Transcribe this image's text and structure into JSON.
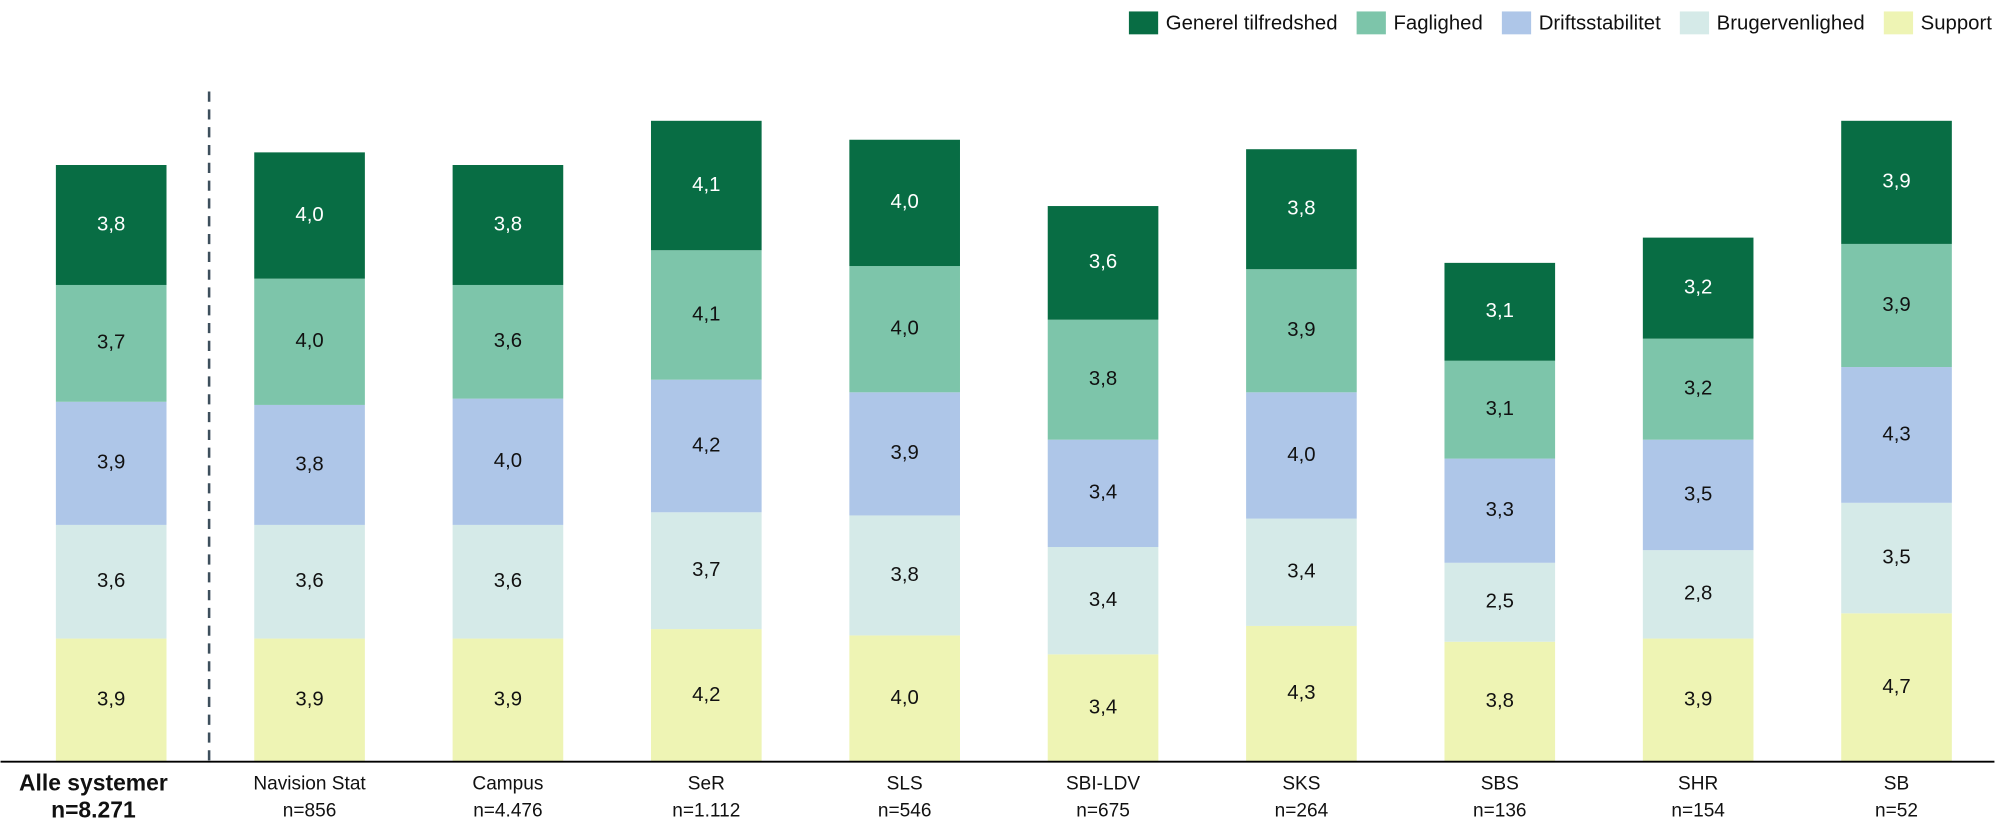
{
  "chart_data": {
    "type": "stacked_bar",
    "categories": [
      "Alle systemer",
      "Navision Stat",
      "Campus",
      "SeR",
      "SLS",
      "SBI-LDV",
      "SKS",
      "SBS",
      "SHR",
      "SB"
    ],
    "category_n": [
      "n=8.271",
      "n=856",
      "n=4.476",
      "n=1.112",
      "n=546",
      "n=675",
      "n=264",
      "n=136",
      "n=154",
      "n=52"
    ],
    "series": [
      {
        "name": "Generel tilfredshed",
        "color": "#086d44",
        "values": [
          3.8,
          4.0,
          3.8,
          4.1,
          4.0,
          3.6,
          3.8,
          3.1,
          3.2,
          3.9
        ],
        "value_labels": [
          "3,8",
          "4,0",
          "3,8",
          "4,1",
          "4,0",
          "3,6",
          "3,8",
          "3,1",
          "3,2",
          "3,9"
        ]
      },
      {
        "name": "Faglighed",
        "color": "#7dc5aa",
        "values": [
          3.7,
          4.0,
          3.6,
          4.1,
          4.0,
          3.8,
          3.9,
          3.1,
          3.2,
          3.9
        ],
        "value_labels": [
          "3,7",
          "4,0",
          "3,6",
          "4,1",
          "4,0",
          "3,8",
          "3,9",
          "3,1",
          "3,2",
          "3,9"
        ]
      },
      {
        "name": "Driftsstabilitet",
        "color": "#aec6e8",
        "values": [
          3.9,
          3.8,
          4.0,
          4.2,
          3.9,
          3.4,
          4.0,
          3.3,
          3.5,
          4.3
        ],
        "value_labels": [
          "3,9",
          "3,8",
          "4,0",
          "4,2",
          "3,9",
          "3,4",
          "4,0",
          "3,3",
          "3,5",
          "4,3"
        ]
      },
      {
        "name": "Brugervenlighed",
        "color": "#d5eae8",
        "values": [
          3.6,
          3.6,
          3.6,
          3.7,
          3.8,
          3.4,
          3.4,
          2.5,
          2.8,
          3.5
        ],
        "value_labels": [
          "3,6",
          "3,6",
          "3,6",
          "3,7",
          "3,8",
          "3,4",
          "3,4",
          "2,5",
          "2,8",
          "3,5"
        ]
      },
      {
        "name": "Support",
        "color": "#eef4b4",
        "values": [
          3.9,
          3.9,
          3.9,
          4.2,
          4.0,
          3.4,
          4.3,
          3.8,
          3.9,
          4.7
        ],
        "value_labels": [
          "3,9",
          "3,9",
          "3,9",
          "4,2",
          "4,0",
          "3,4",
          "4,3",
          "3,8",
          "3,9",
          "4,7"
        ]
      }
    ]
  }
}
